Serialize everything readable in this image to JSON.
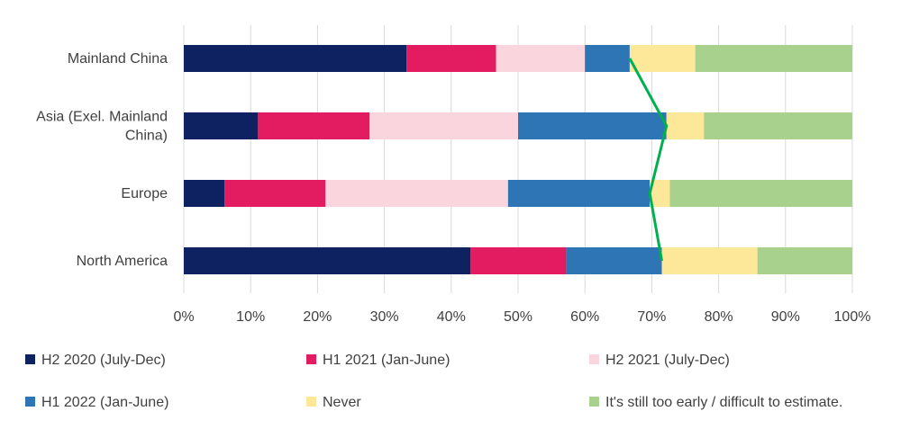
{
  "chart_data": {
    "type": "bar",
    "orientation": "horizontal",
    "stacked": true,
    "normalized": true,
    "categories": [
      "Mainland China",
      "Asia (Exel. Mainland China)",
      "Europe",
      "North America"
    ],
    "series": [
      {
        "name": "H2 2020 (July-Dec)",
        "color": "#0e2160",
        "values": [
          33.3,
          11.1,
          6.1,
          42.9
        ]
      },
      {
        "name": "H1 2021 (Jan-June)",
        "color": "#e31b60",
        "values": [
          13.4,
          16.7,
          15.1,
          14.3
        ]
      },
      {
        "name": "H2 2021 (July-Dec)",
        "color": "#fad5de",
        "values": [
          13.3,
          22.2,
          27.3,
          0
        ]
      },
      {
        "name": "H1 2022 (Jan-June)",
        "color": "#2e75b6",
        "values": [
          6.7,
          22.2,
          21.2,
          14.3
        ]
      },
      {
        "name": "Never",
        "color": "#fde899",
        "values": [
          9.8,
          5.6,
          3.0,
          14.3
        ]
      },
      {
        "name": "It's still too early / difficult to estimate.",
        "color": "#a9d18e",
        "values": [
          23.5,
          22.2,
          27.3,
          14.2
        ]
      }
    ],
    "connector_line": {
      "color": "#00b050",
      "values": [
        66.7,
        72.2,
        69.7,
        71.5
      ]
    },
    "x_ticks": [
      "0%",
      "10%",
      "20%",
      "30%",
      "40%",
      "50%",
      "60%",
      "70%",
      "80%",
      "90%",
      "100%"
    ],
    "xlim": [
      0,
      100
    ],
    "grid": "vertical",
    "legend_position": "bottom"
  }
}
